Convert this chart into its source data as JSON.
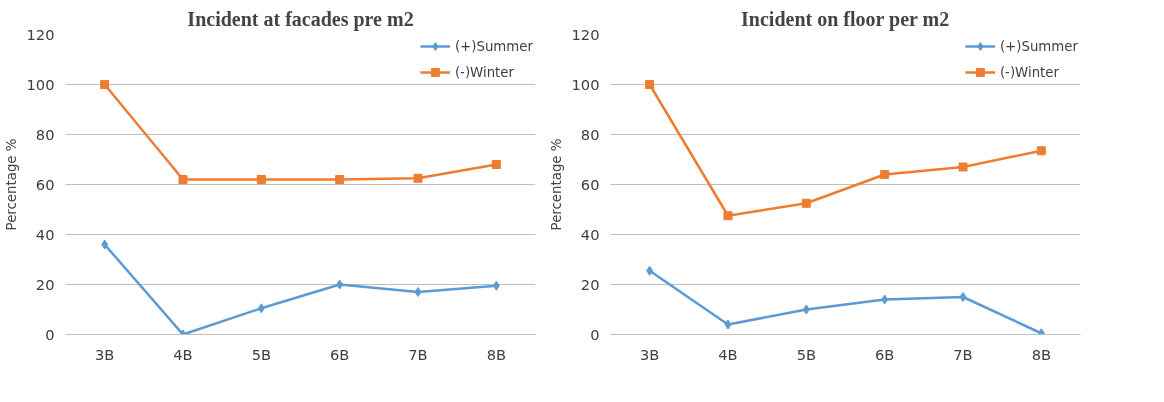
{
  "chart_data": [
    {
      "type": "line",
      "title": "Incident at facades pre m2",
      "ylabel": "Percentage %",
      "categories": [
        "3B",
        "4B",
        "5B",
        "6B",
        "7B",
        "8B"
      ],
      "ylim": [
        0,
        120
      ],
      "yticks": [
        0,
        20,
        40,
        60,
        80,
        100,
        120
      ],
      "grid": "y",
      "legend": "top right",
      "line_style": "solid",
      "series": [
        {
          "name": "(+)Summer",
          "color": "#5b9bd5",
          "marker": "diamond",
          "values": [
            36,
            0,
            10.5,
            20,
            17,
            19.5
          ]
        },
        {
          "name": "(-)Winter",
          "color": "#ed7d31",
          "marker": "square",
          "values": [
            100,
            62,
            62,
            62,
            62.5,
            68
          ]
        }
      ]
    },
    {
      "type": "line",
      "title": "Incident on floor per m2",
      "ylabel": "Percentage %",
      "categories": [
        "3B",
        "4B",
        "5B",
        "6B",
        "7B",
        "8B"
      ],
      "ylim": [
        0,
        120
      ],
      "yticks": [
        0,
        20,
        40,
        60,
        80,
        100,
        120
      ],
      "grid": "y",
      "legend": "top right",
      "line_style": "solid",
      "series": [
        {
          "name": "(+)Summer",
          "color": "#5b9bd5",
          "marker": "diamond",
          "values": [
            25.5,
            4,
            10,
            14,
            15,
            0.5
          ]
        },
        {
          "name": "(-)Winter",
          "color": "#ed7d31",
          "marker": "square",
          "values": [
            100,
            47.5,
            52.5,
            64,
            67,
            73.5
          ]
        }
      ]
    }
  ]
}
